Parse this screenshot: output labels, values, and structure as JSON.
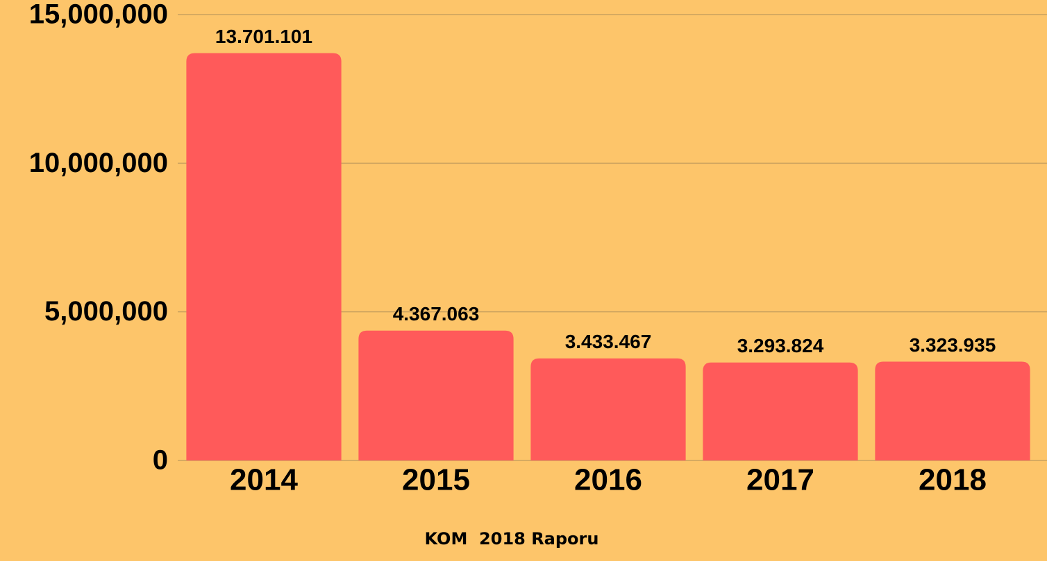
{
  "chart_data": {
    "type": "bar",
    "categories": [
      "2014",
      "2015",
      "2016",
      "2017",
      "2018"
    ],
    "values": [
      13701101,
      4367063,
      3433467,
      3293824,
      3323935
    ],
    "value_labels": [
      "13.701.101",
      "4.367.063",
      "3.433.467",
      "3.293.824",
      "3.323.935"
    ],
    "color": "#ff5a5a",
    "ylim": [
      0,
      15000000
    ],
    "yticks": [
      0,
      {
        "value": 5000000,
        "label": "5,000,000"
      },
      {
        "value": 10000000,
        "label": "10,000,000"
      },
      {
        "value": 15000000,
        "label": "15,000,000"
      }
    ],
    "grid": true,
    "caption": "KOM  2018 Raporu"
  }
}
